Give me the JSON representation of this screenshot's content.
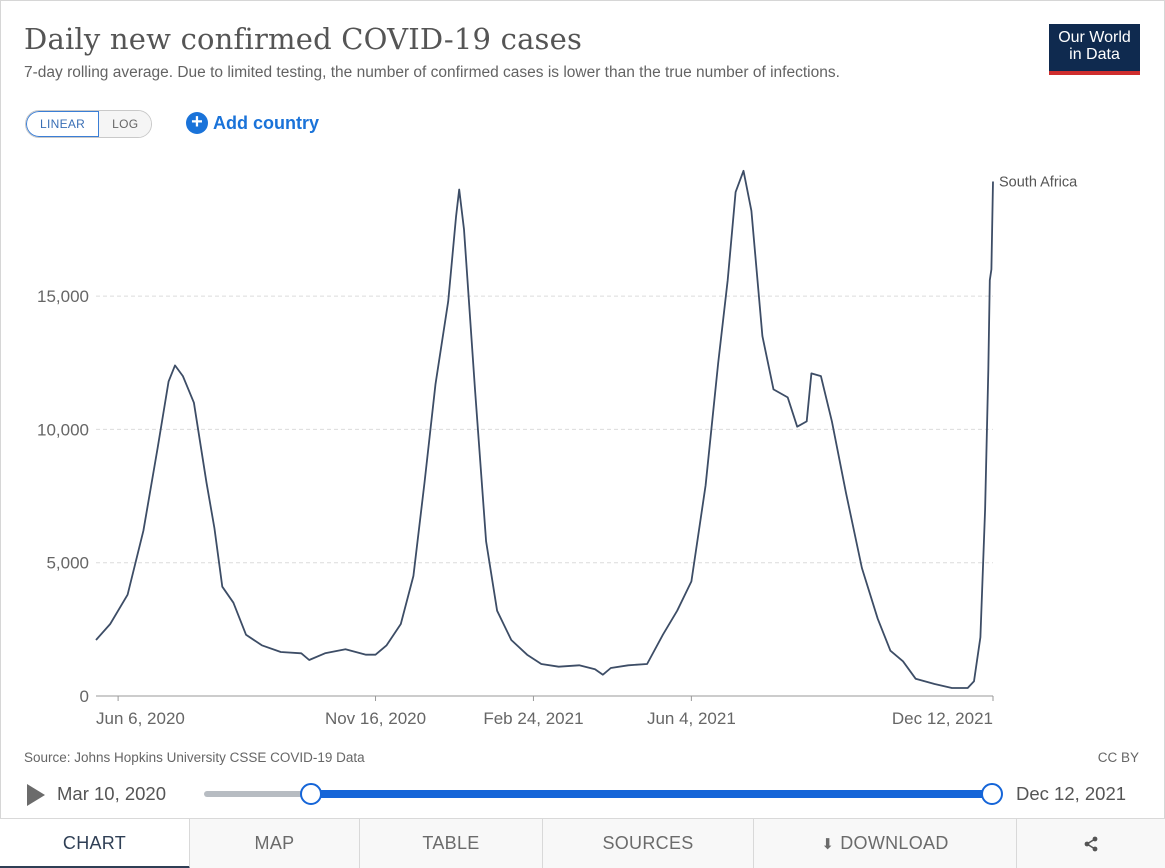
{
  "header": {
    "title": "Daily new confirmed COVID-19 cases",
    "subtitle": "7-day rolling average. Due to limited testing, the number of confirmed cases is lower than the true number of infections.",
    "logo_line1": "Our World",
    "logo_line2": "in Data"
  },
  "controls": {
    "linear_label": "LINEAR",
    "log_label": "LOG",
    "add_country_label": "Add country"
  },
  "footer": {
    "source": "Source: Johns Hopkins University CSSE COVID-19 Data",
    "license": "CC BY"
  },
  "timeline": {
    "start_date": "Mar 10, 2020",
    "end_date": "Dec 12, 2021"
  },
  "tabs": [
    {
      "label": "CHART",
      "icon": ""
    },
    {
      "label": "MAP",
      "icon": ""
    },
    {
      "label": "TABLE",
      "icon": ""
    },
    {
      "label": "SOURCES",
      "icon": ""
    },
    {
      "label": "DOWNLOAD",
      "icon": "download-icon"
    },
    {
      "label": "",
      "icon": "share-icon"
    }
  ],
  "colors": {
    "line": "#3d4d66",
    "accent": "#1565d8",
    "logo_bg": "#0f2a4f",
    "logo_bar": "#cf2e2e"
  },
  "chart_data": {
    "type": "line",
    "ylim": [
      0,
      20000
    ],
    "yticks": [
      0,
      5000,
      10000,
      15000
    ],
    "ytick_labels": [
      "0",
      "5,000",
      "10,000",
      "15,000"
    ],
    "xticks": [
      {
        "date": "2020-06-06",
        "label": "Jun 6, 2020"
      },
      {
        "date": "2020-11-16",
        "label": "Nov 16, 2020"
      },
      {
        "date": "2021-02-24",
        "label": "Feb 24, 2021"
      },
      {
        "date": "2021-06-04",
        "label": "Jun 4, 2021"
      },
      {
        "date": "2021-12-12",
        "label": "Dec 12, 2021"
      }
    ],
    "grid": "horizontal dashed",
    "series": [
      {
        "name": "South Africa",
        "points": [
          [
            "2020-05-23",
            2100
          ],
          [
            "2020-06-01",
            2700
          ],
          [
            "2020-06-12",
            3800
          ],
          [
            "2020-06-22",
            6200
          ],
          [
            "2020-07-01",
            9300
          ],
          [
            "2020-07-08",
            11800
          ],
          [
            "2020-07-12",
            12400
          ],
          [
            "2020-07-17",
            12000
          ],
          [
            "2020-07-24",
            11000
          ],
          [
            "2020-08-01",
            8000
          ],
          [
            "2020-08-06",
            6300
          ],
          [
            "2020-08-11",
            4100
          ],
          [
            "2020-08-18",
            3500
          ],
          [
            "2020-08-26",
            2300
          ],
          [
            "2020-09-05",
            1900
          ],
          [
            "2020-09-17",
            1650
          ],
          [
            "2020-09-30",
            1600
          ],
          [
            "2020-10-05",
            1350
          ],
          [
            "2020-10-15",
            1600
          ],
          [
            "2020-10-28",
            1750
          ],
          [
            "2020-11-10",
            1550
          ],
          [
            "2020-11-16",
            1550
          ],
          [
            "2020-11-23",
            1900
          ],
          [
            "2020-12-02",
            2700
          ],
          [
            "2020-12-10",
            4500
          ],
          [
            "2020-12-17",
            8000
          ],
          [
            "2020-12-24",
            11700
          ],
          [
            "2021-01-01",
            14800
          ],
          [
            "2021-01-06",
            18000
          ],
          [
            "2021-01-08",
            19000
          ],
          [
            "2021-01-11",
            17500
          ],
          [
            "2021-01-18",
            11500
          ],
          [
            "2021-01-25",
            5800
          ],
          [
            "2021-02-01",
            3200
          ],
          [
            "2021-02-10",
            2100
          ],
          [
            "2021-02-20",
            1550
          ],
          [
            "2021-03-01",
            1200
          ],
          [
            "2021-03-12",
            1100
          ],
          [
            "2021-03-25",
            1150
          ],
          [
            "2021-04-04",
            1000
          ],
          [
            "2021-04-09",
            800
          ],
          [
            "2021-04-14",
            1050
          ],
          [
            "2021-04-25",
            1150
          ],
          [
            "2021-05-07",
            1200
          ],
          [
            "2021-05-17",
            2300
          ],
          [
            "2021-05-26",
            3200
          ],
          [
            "2021-06-04",
            4300
          ],
          [
            "2021-06-13",
            7900
          ],
          [
            "2021-06-21",
            12500
          ],
          [
            "2021-06-27",
            15600
          ],
          [
            "2021-07-02",
            18900
          ],
          [
            "2021-07-07",
            19700
          ],
          [
            "2021-07-12",
            18200
          ],
          [
            "2021-07-19",
            13500
          ],
          [
            "2021-07-26",
            11500
          ],
          [
            "2021-08-04",
            11200
          ],
          [
            "2021-08-10",
            10100
          ],
          [
            "2021-08-16",
            10300
          ],
          [
            "2021-08-19",
            12100
          ],
          [
            "2021-08-25",
            12000
          ],
          [
            "2021-09-01",
            10300
          ],
          [
            "2021-09-10",
            7600
          ],
          [
            "2021-09-20",
            4800
          ],
          [
            "2021-09-30",
            2900
          ],
          [
            "2021-10-08",
            1700
          ],
          [
            "2021-10-16",
            1300
          ],
          [
            "2021-10-24",
            650
          ],
          [
            "2021-11-05",
            450
          ],
          [
            "2021-11-16",
            300
          ],
          [
            "2021-11-26",
            300
          ],
          [
            "2021-11-30",
            550
          ],
          [
            "2021-12-04",
            2200
          ],
          [
            "2021-12-07",
            7000
          ],
          [
            "2021-12-09",
            12200
          ],
          [
            "2021-12-10",
            15600
          ],
          [
            "2021-12-11",
            16000
          ],
          [
            "2021-12-12",
            19300
          ]
        ]
      }
    ]
  }
}
